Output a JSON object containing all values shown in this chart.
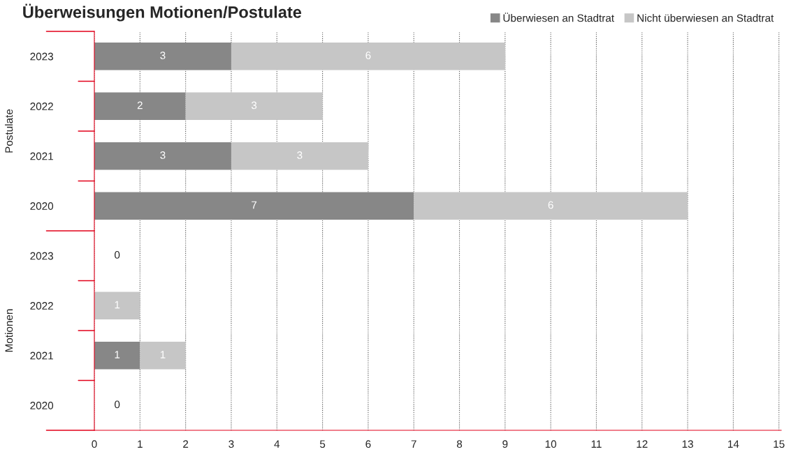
{
  "chart_data": {
    "type": "bar",
    "orientation": "horizontal",
    "stacked": true,
    "title": "Überweisungen Motionen/Postulate",
    "categories": [
      "2023",
      "2022",
      "2021",
      "2020",
      "2023",
      "2022",
      "2021",
      "2020"
    ],
    "annotations": [
      "Postulate",
      "Motionen"
    ],
    "series": [
      {
        "name": "Überwiesen an Stadtrat",
        "color": "#878787",
        "values": [
          3,
          2,
          3,
          7,
          0,
          0,
          1,
          0
        ],
        "value_labels": [
          "3",
          "2",
          "3",
          "7",
          null,
          null,
          "1",
          null
        ]
      },
      {
        "name": "Nicht überwiesen an Stadtrat",
        "color": "#c6c6c6",
        "values": [
          6,
          3,
          3,
          6,
          0,
          1,
          1,
          0
        ],
        "value_labels": [
          "6",
          "3",
          "3",
          "6",
          null,
          "1",
          "1",
          null
        ]
      }
    ],
    "totals": [
      null,
      null,
      null,
      null,
      "0",
      null,
      null,
      "0"
    ],
    "xlim": [
      0,
      15.05
    ],
    "xticks": [
      0,
      1,
      2,
      3,
      4,
      5,
      6,
      7,
      8,
      9,
      10,
      11,
      12,
      13,
      14,
      15
    ],
    "grid": "x",
    "legend": "top right"
  }
}
